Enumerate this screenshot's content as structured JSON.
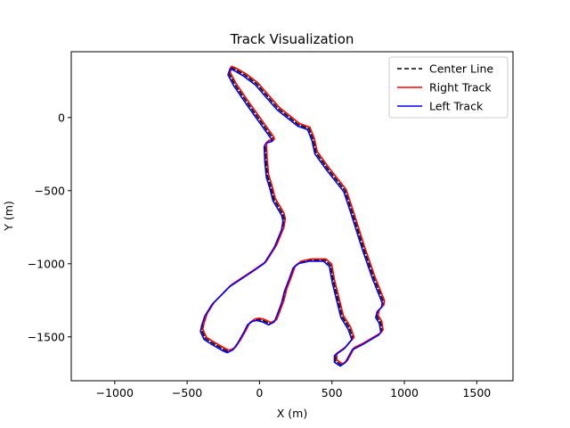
{
  "chart_data": {
    "type": "line",
    "title": "Track Visualization",
    "xlabel": "X (m)",
    "ylabel": "Y (m)",
    "xlim": [
      -1300,
      1750
    ],
    "ylim": [
      -1800,
      450
    ],
    "xticks": [
      -1000,
      -500,
      0,
      500,
      1000,
      1500
    ],
    "yticks": [
      0,
      -500,
      -1000,
      -1500
    ],
    "xtick_labels": [
      "−1000",
      "−500",
      "0",
      "500",
      "1000",
      "1500"
    ],
    "ytick_labels": [
      "0",
      "−500",
      "−1000",
      "−1500"
    ],
    "grid": false,
    "legend_position": "top-right",
    "series": [
      {
        "name": "Center Line",
        "color": "#000000",
        "style": "dashed",
        "points": [
          [
            -198,
            342
          ],
          [
            -170,
            330
          ],
          [
            -100,
            290
          ],
          [
            -20,
            230
          ],
          [
            50,
            150
          ],
          [
            130,
            60
          ],
          [
            270,
            -50
          ],
          [
            340,
            -75
          ],
          [
            370,
            -150
          ],
          [
            390,
            -240
          ],
          [
            470,
            -350
          ],
          [
            590,
            -500
          ],
          [
            640,
            -650
          ],
          [
            720,
            -900
          ],
          [
            790,
            -1100
          ],
          [
            855,
            -1260
          ],
          [
            850,
            -1290
          ],
          [
            820,
            -1320
          ],
          [
            810,
            -1360
          ],
          [
            835,
            -1400
          ],
          [
            845,
            -1460
          ],
          [
            830,
            -1480
          ],
          [
            710,
            -1550
          ],
          [
            648,
            -1580
          ],
          [
            600,
            -1668
          ],
          [
            565,
            -1692
          ],
          [
            525,
            -1665
          ],
          [
            525,
            -1620
          ],
          [
            590,
            -1575
          ],
          [
            645,
            -1510
          ],
          [
            620,
            -1440
          ],
          [
            570,
            -1360
          ],
          [
            545,
            -1260
          ],
          [
            510,
            -1120
          ],
          [
            490,
            -1010
          ],
          [
            450,
            -975
          ],
          [
            350,
            -975
          ],
          [
            280,
            -990
          ],
          [
            240,
            -1020
          ],
          [
            215,
            -1090
          ],
          [
            180,
            -1180
          ],
          [
            160,
            -1260
          ],
          [
            130,
            -1340
          ],
          [
            110,
            -1390
          ],
          [
            70,
            -1410
          ],
          [
            30,
            -1390
          ],
          [
            -10,
            -1380
          ],
          [
            -40,
            -1385
          ],
          [
            -75,
            -1410
          ],
          [
            -100,
            -1460
          ],
          [
            -140,
            -1530
          ],
          [
            -175,
            -1580
          ],
          [
            -215,
            -1600
          ],
          [
            -240,
            -1590
          ],
          [
            -320,
            -1545
          ],
          [
            -375,
            -1510
          ],
          [
            -400,
            -1455
          ],
          [
            -390,
            -1410
          ],
          [
            -370,
            -1350
          ],
          [
            -320,
            -1270
          ],
          [
            -200,
            -1150
          ],
          [
            -40,
            -1045
          ],
          [
            40,
            -990
          ],
          [
            110,
            -880
          ],
          [
            160,
            -760
          ],
          [
            170,
            -700
          ],
          [
            160,
            -660
          ],
          [
            100,
            -560
          ],
          [
            80,
            -480
          ],
          [
            55,
            -400
          ],
          [
            45,
            -300
          ],
          [
            40,
            -190
          ],
          [
            55,
            -165
          ],
          [
            80,
            -160
          ],
          [
            95,
            -155
          ],
          [
            90,
            -140
          ],
          [
            -80,
            95
          ],
          [
            -170,
            225
          ],
          [
            -210,
            300
          ],
          [
            -198,
            342
          ]
        ]
      },
      {
        "name": "Right Track",
        "color": "#ff0000",
        "style": "solid",
        "points": [
          [
            -193,
            350
          ],
          [
            -163,
            338
          ],
          [
            -92,
            298
          ],
          [
            -12,
            238
          ],
          [
            58,
            158
          ],
          [
            138,
            68
          ],
          [
            278,
            -42
          ],
          [
            348,
            -67
          ],
          [
            378,
            -142
          ],
          [
            398,
            -232
          ],
          [
            478,
            -342
          ],
          [
            598,
            -492
          ],
          [
            648,
            -642
          ],
          [
            728,
            -892
          ],
          [
            798,
            -1092
          ],
          [
            863,
            -1252
          ],
          [
            858,
            -1282
          ],
          [
            828,
            -1312
          ],
          [
            818,
            -1352
          ],
          [
            843,
            -1392
          ],
          [
            853,
            -1452
          ],
          [
            838,
            -1472
          ],
          [
            718,
            -1542
          ],
          [
            656,
            -1572
          ],
          [
            608,
            -1660
          ],
          [
            573,
            -1684
          ],
          [
            533,
            -1657
          ],
          [
            533,
            -1612
          ],
          [
            598,
            -1567
          ],
          [
            653,
            -1502
          ],
          [
            628,
            -1432
          ],
          [
            578,
            -1352
          ],
          [
            553,
            -1252
          ],
          [
            518,
            -1112
          ],
          [
            498,
            -1002
          ],
          [
            458,
            -967
          ],
          [
            358,
            -967
          ],
          [
            288,
            -982
          ],
          [
            248,
            -1012
          ],
          [
            223,
            -1082
          ],
          [
            188,
            -1172
          ],
          [
            168,
            -1252
          ],
          [
            138,
            -1332
          ],
          [
            118,
            -1382
          ],
          [
            78,
            -1402
          ],
          [
            38,
            -1382
          ],
          [
            -2,
            -1372
          ],
          [
            -32,
            -1377
          ],
          [
            -67,
            -1402
          ],
          [
            -92,
            -1452
          ],
          [
            -132,
            -1522
          ],
          [
            -167,
            -1572
          ],
          [
            -207,
            -1592
          ],
          [
            -232,
            -1582
          ],
          [
            -312,
            -1537
          ],
          [
            -367,
            -1502
          ],
          [
            -392,
            -1447
          ],
          [
            -382,
            -1402
          ],
          [
            -362,
            -1342
          ],
          [
            -312,
            -1262
          ],
          [
            -192,
            -1142
          ],
          [
            -32,
            -1037
          ],
          [
            48,
            -982
          ],
          [
            118,
            -872
          ],
          [
            168,
            -752
          ],
          [
            178,
            -692
          ],
          [
            168,
            -652
          ],
          [
            108,
            -552
          ],
          [
            88,
            -472
          ],
          [
            63,
            -392
          ],
          [
            53,
            -292
          ],
          [
            48,
            -182
          ],
          [
            63,
            -157
          ],
          [
            88,
            -152
          ],
          [
            103,
            -147
          ],
          [
            98,
            -132
          ],
          [
            -72,
            103
          ],
          [
            -162,
            233
          ],
          [
            -202,
            308
          ],
          [
            -193,
            350
          ]
        ]
      },
      {
        "name": "Left Track",
        "color": "#0000ff",
        "style": "solid",
        "points": [
          [
            -203,
            334
          ],
          [
            -177,
            322
          ],
          [
            -108,
            282
          ],
          [
            -28,
            222
          ],
          [
            42,
            142
          ],
          [
            122,
            52
          ],
          [
            262,
            -58
          ],
          [
            332,
            -83
          ],
          [
            362,
            -158
          ],
          [
            382,
            -248
          ],
          [
            462,
            -358
          ],
          [
            582,
            -508
          ],
          [
            632,
            -658
          ],
          [
            712,
            -908
          ],
          [
            782,
            -1108
          ],
          [
            847,
            -1268
          ],
          [
            842,
            -1298
          ],
          [
            812,
            -1328
          ],
          [
            802,
            -1368
          ],
          [
            827,
            -1408
          ],
          [
            837,
            -1468
          ],
          [
            822,
            -1488
          ],
          [
            702,
            -1558
          ],
          [
            640,
            -1588
          ],
          [
            592,
            -1676
          ],
          [
            557,
            -1700
          ],
          [
            517,
            -1673
          ],
          [
            517,
            -1628
          ],
          [
            582,
            -1583
          ],
          [
            637,
            -1518
          ],
          [
            612,
            -1448
          ],
          [
            562,
            -1368
          ],
          [
            537,
            -1268
          ],
          [
            502,
            -1128
          ],
          [
            482,
            -1018
          ],
          [
            442,
            -983
          ],
          [
            342,
            -983
          ],
          [
            272,
            -998
          ],
          [
            232,
            -1028
          ],
          [
            207,
            -1098
          ],
          [
            172,
            -1188
          ],
          [
            152,
            -1268
          ],
          [
            122,
            -1348
          ],
          [
            102,
            -1398
          ],
          [
            62,
            -1418
          ],
          [
            22,
            -1398
          ],
          [
            -18,
            -1388
          ],
          [
            -48,
            -1393
          ],
          [
            -83,
            -1418
          ],
          [
            -108,
            -1468
          ],
          [
            -148,
            -1538
          ],
          [
            -183,
            -1588
          ],
          [
            -223,
            -1608
          ],
          [
            -248,
            -1598
          ],
          [
            -328,
            -1553
          ],
          [
            -383,
            -1518
          ],
          [
            -408,
            -1463
          ],
          [
            -398,
            -1418
          ],
          [
            -378,
            -1358
          ],
          [
            -328,
            -1278
          ],
          [
            -208,
            -1158
          ],
          [
            -48,
            -1053
          ],
          [
            32,
            -998
          ],
          [
            102,
            -888
          ],
          [
            152,
            -768
          ],
          [
            162,
            -708
          ],
          [
            152,
            -668
          ],
          [
            92,
            -568
          ],
          [
            72,
            -488
          ],
          [
            47,
            -408
          ],
          [
            37,
            -308
          ],
          [
            32,
            -198
          ],
          [
            47,
            -173
          ],
          [
            72,
            -168
          ],
          [
            87,
            -163
          ],
          [
            82,
            -148
          ],
          [
            -88,
            87
          ],
          [
            -178,
            217
          ],
          [
            -218,
            292
          ],
          [
            -203,
            334
          ]
        ]
      }
    ]
  }
}
